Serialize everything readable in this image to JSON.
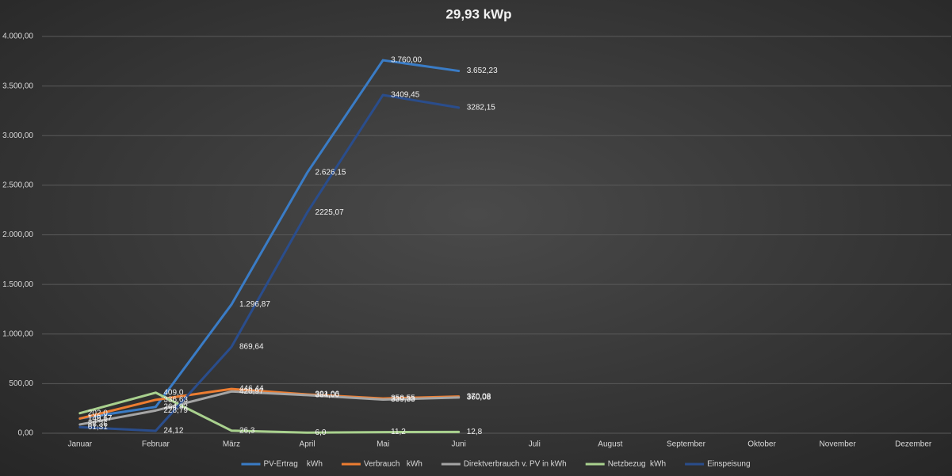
{
  "chart_data": {
    "type": "line",
    "title": "29,93 kWp",
    "categories": [
      "Januar",
      "Februar",
      "März",
      "April",
      "Mai",
      "Juni",
      "Juli",
      "August",
      "September",
      "Oktober",
      "November",
      "Dezember"
    ],
    "ylim": [
      0,
      4000
    ],
    "yticks": [
      {
        "value": 0,
        "label": "0,00"
      },
      {
        "value": 500,
        "label": "500,00"
      },
      {
        "value": 1000,
        "label": "1.000,00"
      },
      {
        "value": 1500,
        "label": "1.500,00"
      },
      {
        "value": 2000,
        "label": "2.000,00"
      },
      {
        "value": 2500,
        "label": "2.500,00"
      },
      {
        "value": 3000,
        "label": "3.000,00"
      },
      {
        "value": 3500,
        "label": "3.500,00"
      },
      {
        "value": 4000,
        "label": "4.000,00"
      }
    ],
    "grid": true,
    "legend": "bottom",
    "series": [
      {
        "name": "PV-Ertrag    kWh",
        "color": "#3a7cc6",
        "values": [
          149.67,
          264.92,
          1296.87,
          2626.15,
          3760.0,
          3652.23,
          null,
          null,
          null,
          null,
          null,
          null
        ],
        "value_labels": [
          "149,67",
          "264,92",
          "1.296,87",
          "2.626,15",
          "3.760,00",
          "3.652,23",
          null,
          null,
          null,
          null,
          null,
          null
        ]
      },
      {
        "name": "Verbrauch   kWh",
        "color": "#ed7d31",
        "values": [
          148.17,
          336.63,
          446.44,
          391.06,
          350.55,
          370.08,
          null,
          null,
          null,
          null,
          null,
          null
        ],
        "value_labels": [
          "148,17",
          "336,63",
          "446,44",
          "391,06",
          "350,55",
          "370,08",
          null,
          null,
          null,
          null,
          null,
          null
        ]
      },
      {
        "name": "Direktverbrauch v. PV in kWh",
        "color": "#a5a5a5",
        "values": [
          88.36,
          228.79,
          420.97,
          384.0,
          339.33,
          360.08,
          null,
          null,
          null,
          null,
          null,
          null
        ],
        "value_labels": [
          "88,36",
          "228,79",
          "420,97",
          "384,00",
          "339,33",
          "360,08",
          null,
          null,
          null,
          null,
          null,
          null
        ]
      },
      {
        "name": "Netzbezug  kWh",
        "color": "#a9d18e",
        "values": [
          202.0,
          409.0,
          26.3,
          6.0,
          11.2,
          12.8,
          null,
          null,
          null,
          null,
          null,
          null
        ],
        "value_labels": [
          "202,0",
          "409,0",
          "26,3",
          "6,0",
          "11,2",
          "12,8",
          null,
          null,
          null,
          null,
          null,
          null
        ]
      },
      {
        "name": "Einspeisung",
        "color": "#2a4d8c",
        "values": [
          61.31,
          24.12,
          869.64,
          2225.07,
          3409.45,
          3282.15,
          null,
          null,
          null,
          null,
          null,
          null
        ],
        "value_labels": [
          "61,31",
          "24,12",
          "869,64",
          "2225,07",
          "3409,45",
          "3282,15",
          null,
          null,
          null,
          null,
          null,
          null
        ]
      }
    ]
  }
}
